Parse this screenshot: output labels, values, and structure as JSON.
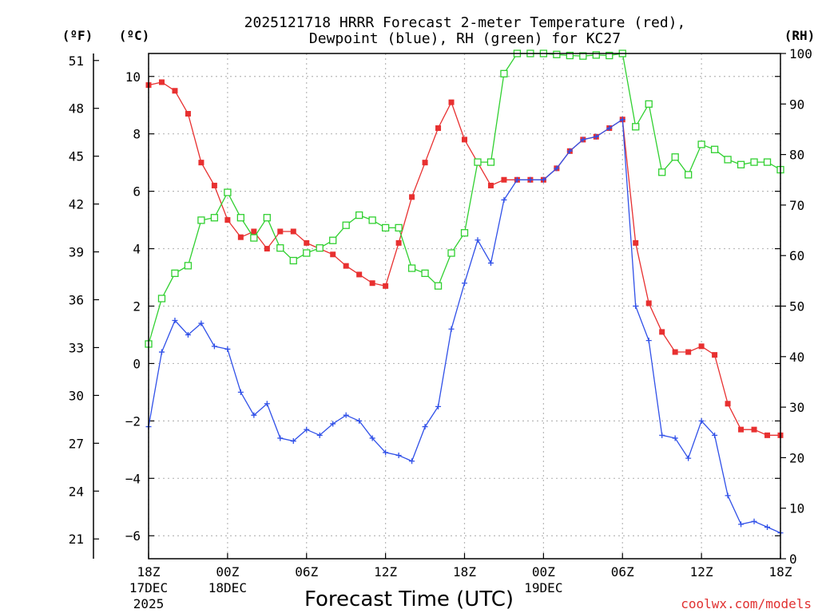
{
  "chart_data": {
    "type": "line",
    "title_line1": "2025121718 HRRR Forecast 2-meter Temperature (red),",
    "title_line2": "Dewpoint (blue), RH (green) for KC27",
    "xlabel": "Forecast Time (UTC)",
    "credit": "coolwx.com/models",
    "credit_color": "#e03030",
    "units": {
      "fahrenheit": "(ºF)",
      "celsius": "(ºC)",
      "rh": "(RH)"
    },
    "x_range_hours": [
      0,
      48
    ],
    "celsius_range": [
      -6.8,
      10.8
    ],
    "rh_range": [
      0,
      100
    ],
    "celsius_ticks": [
      -6,
      -4,
      -2,
      0,
      2,
      4,
      6,
      8,
      10
    ],
    "fahrenheit_ticks": [
      21,
      24,
      27,
      30,
      33,
      36,
      39,
      42,
      45,
      48,
      51
    ],
    "rh_ticks": [
      0,
      10,
      20,
      30,
      40,
      50,
      60,
      70,
      80,
      90,
      100
    ],
    "x_ticks": [
      {
        "hour": 0,
        "label": "18Z",
        "sub1": "17DEC",
        "sub2": "2025"
      },
      {
        "hour": 6,
        "label": "00Z",
        "sub1": "18DEC",
        "sub2": ""
      },
      {
        "hour": 12,
        "label": "06Z",
        "sub1": "",
        "sub2": ""
      },
      {
        "hour": 18,
        "label": "12Z",
        "sub1": "",
        "sub2": ""
      },
      {
        "hour": 24,
        "label": "18Z",
        "sub1": "",
        "sub2": ""
      },
      {
        "hour": 30,
        "label": "00Z",
        "sub1": "19DEC",
        "sub2": ""
      },
      {
        "hour": 36,
        "label": "06Z",
        "sub1": "",
        "sub2": ""
      },
      {
        "hour": 42,
        "label": "12Z",
        "sub1": "",
        "sub2": ""
      },
      {
        "hour": 48,
        "label": "18Z",
        "sub1": "",
        "sub2": ""
      }
    ],
    "hours": [
      0,
      1,
      2,
      3,
      4,
      5,
      6,
      7,
      8,
      9,
      10,
      11,
      12,
      13,
      14,
      15,
      16,
      17,
      18,
      19,
      20,
      21,
      22,
      23,
      24,
      25,
      26,
      27,
      28,
      29,
      30,
      31,
      32,
      33,
      34,
      35,
      36,
      37,
      38,
      39,
      40,
      41,
      42,
      43,
      44,
      45,
      46,
      47,
      48
    ],
    "series": [
      {
        "name": "Temperature (ºC)",
        "color": "#e83030",
        "marker": "square-filled",
        "values": [
          9.7,
          9.8,
          9.5,
          8.7,
          7.0,
          6.2,
          5.0,
          4.4,
          4.6,
          4.0,
          4.6,
          4.6,
          4.2,
          4.0,
          3.8,
          3.4,
          3.1,
          2.8,
          2.7,
          4.2,
          5.8,
          7.0,
          8.2,
          9.1,
          7.8,
          7.0,
          6.2,
          6.4,
          6.4,
          6.4,
          6.4,
          6.8,
          7.4,
          7.8,
          7.9,
          8.2,
          8.5,
          4.2,
          2.1,
          1.1,
          0.4,
          0.4,
          0.6,
          0.3,
          -1.4,
          -2.3,
          -2.3,
          -2.5,
          -2.5
        ]
      },
      {
        "name": "Dewpoint (ºC)",
        "color": "#3050e8",
        "marker": "plus",
        "values": [
          -2.2,
          0.4,
          1.5,
          1.0,
          1.4,
          0.6,
          0.5,
          -1.0,
          -1.8,
          -1.4,
          -2.6,
          -2.7,
          -2.3,
          -2.5,
          -2.1,
          -1.8,
          -2.0,
          -2.6,
          -3.1,
          -3.2,
          -3.4,
          -2.2,
          -1.5,
          1.2,
          2.8,
          4.3,
          3.5,
          5.7,
          6.4,
          6.4,
          6.4,
          6.8,
          7.4,
          7.8,
          7.9,
          8.2,
          8.5,
          2.0,
          0.8,
          -2.5,
          -2.6,
          -3.3,
          -2.0,
          -2.5,
          -4.6,
          -5.6,
          -5.5,
          -5.7,
          -5.9
        ]
      },
      {
        "name": "RH (%)",
        "color": "#30d030",
        "marker": "square-open",
        "values": [
          42.5,
          51.5,
          56.5,
          58,
          67,
          67.5,
          72.5,
          67.5,
          63.5,
          67.5,
          61.5,
          59,
          60.5,
          61.5,
          63,
          66,
          68,
          67,
          65.5,
          65.5,
          57.5,
          56.5,
          54,
          60.5,
          64.5,
          78.5,
          78.5,
          96,
          100,
          100,
          100,
          99.8,
          99.6,
          99.5,
          99.7,
          99.6,
          100,
          85.5,
          90,
          76.5,
          79.5,
          76,
          82,
          81,
          79,
          78,
          78.5,
          78.5,
          77
        ]
      }
    ]
  }
}
